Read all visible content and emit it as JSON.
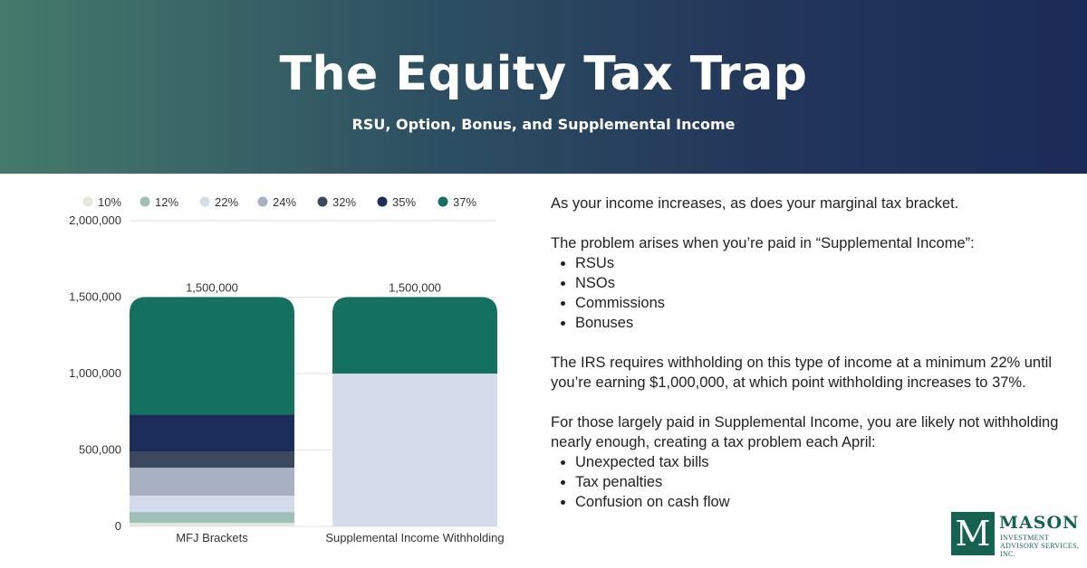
{
  "header": {
    "title": "The Equity Tax Trap",
    "subtitle": "RSU, Option, Bonus, and Supplemental Income"
  },
  "chart_data": {
    "type": "bar",
    "stacked": true,
    "categories": [
      "MFJ Brackets",
      "Supplemental Income Withholding"
    ],
    "series": [
      {
        "name": "10%",
        "color": "#e6e7dc",
        "values": [
          23200,
          0
        ]
      },
      {
        "name": "12%",
        "color": "#9ec0b7",
        "values": [
          71100,
          0
        ]
      },
      {
        "name": "22%",
        "color": "#d4dbeb",
        "values": [
          106750,
          1000000
        ]
      },
      {
        "name": "24%",
        "color": "#a7b1c2",
        "values": [
          182850,
          0
        ]
      },
      {
        "name": "32%",
        "color": "#3b4860",
        "values": [
          103550,
          0
        ]
      },
      {
        "name": "35%",
        "color": "#1c2d5a",
        "values": [
          243725,
          0
        ]
      },
      {
        "name": "37%",
        "color": "#14705f",
        "values": [
          768825,
          500000
        ]
      }
    ],
    "totals": [
      "1,500,000",
      "1,500,000"
    ],
    "y_ticks": [
      "0",
      "500,000",
      "1,000,000",
      "1,500,000",
      "2,000,000"
    ],
    "ylim": [
      0,
      2000000
    ],
    "grid": true,
    "legend_position": "top"
  },
  "info": {
    "intro": "As your income increases, as does your marginal tax bracket.",
    "problem": "The problem arises when you’re paid in “Supplemental Income”:",
    "income_types": [
      "RSUs",
      "NSOs",
      "Commissions",
      "Bonuses"
    ],
    "irs": "The IRS requires withholding on this type of income at a minimum 22% until you’re earning $1,000,000, at which point withholding increases to 37%.",
    "consequence": "For those largely paid in Supplemental Income, you are likely not withholding nearly enough, creating a tax problem each April:",
    "problems": [
      "Unexpected tax bills",
      "Tax penalties",
      "Confusion on cash flow"
    ]
  },
  "logo": {
    "letter": "M",
    "name": "MASON",
    "tagline": "INVESTMENT ADVISORY SERVICES, INC."
  }
}
